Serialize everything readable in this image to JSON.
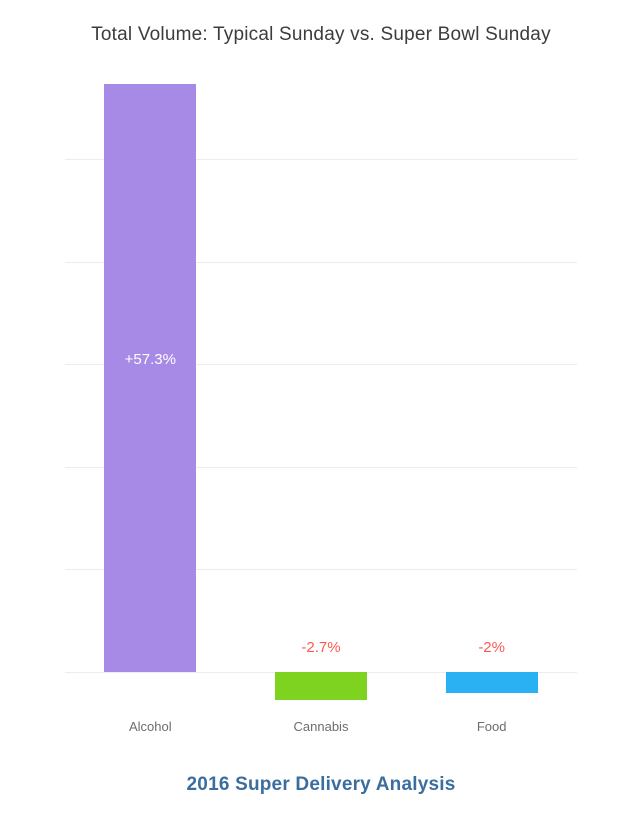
{
  "title": "Total Volume: Typical Sunday vs. Super Bowl Sunday",
  "caption": {
    "text": "2016 Super Delivery Analysis",
    "color": "#3b6e9f"
  },
  "colors": {
    "title": "#3c3c3c",
    "grid": "#ececec",
    "category_label": "#6d6d6d",
    "background": "#ffffff"
  },
  "chart_data": {
    "type": "bar",
    "title": "Total Volume: Typical Sunday vs. Super Bowl Sunday",
    "categories": [
      "Alcohol",
      "Cannabis",
      "Food"
    ],
    "values": [
      57.3,
      -2.7,
      -2
    ],
    "value_labels": [
      "+57.3%",
      "-2.7%",
      "-2%"
    ],
    "bar_colors": [
      "#a78ae6",
      "#7ed321",
      "#29b1f4"
    ],
    "value_label_colors": [
      "#ffffff",
      "#fc5a50",
      "#fc5a50"
    ],
    "xlabel": "",
    "ylabel": "",
    "unit": "%",
    "ylim": [
      -6.8,
      57.5
    ],
    "gridline_values": [
      0,
      10,
      20,
      30,
      40,
      50
    ],
    "grid": true,
    "legend": false,
    "annotation": "2016 Super Delivery Analysis"
  }
}
